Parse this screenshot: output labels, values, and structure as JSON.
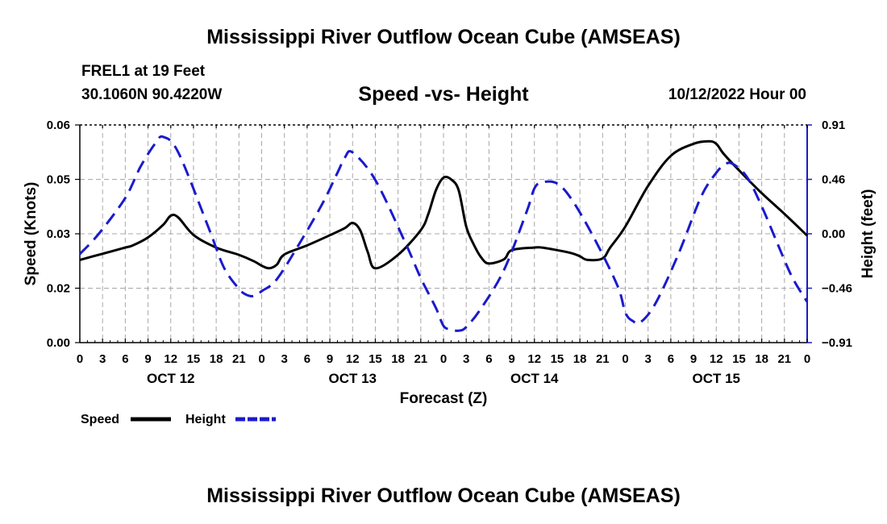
{
  "page": {
    "title": "Mississippi River Outflow Ocean Cube (AMSEAS)",
    "footer_title": "Mississippi River Outflow Ocean Cube (AMSEAS)",
    "station": "FREL1 at 19 Feet",
    "coords": "30.1060N  90.4220W",
    "datetime": "10/12/2022 Hour 00"
  },
  "chart_data": {
    "type": "line",
    "title": "Speed -vs- Height",
    "xlabel": "Forecast (Z)",
    "ylabel_left": "Speed (Knots)",
    "ylabel_right": "Height (feet)",
    "x_range_hours": [
      0,
      96
    ],
    "left_ylim": [
      0,
      0.06
    ],
    "left_ticks": [
      "0.00",
      "0.02",
      "0.03",
      "0.05",
      "0.06"
    ],
    "right_ylim": [
      -0.91,
      0.91
    ],
    "right_ticks": [
      "−0.91",
      "−0.46",
      "0.00",
      "0.46",
      "0.91"
    ],
    "x_tick_labels": [
      "0",
      "3",
      "6",
      "9",
      "12",
      "15",
      "18",
      "21",
      "0",
      "3",
      "6",
      "9",
      "12",
      "15",
      "18",
      "21",
      "0",
      "3",
      "6",
      "9",
      "12",
      "15",
      "18",
      "21",
      "0",
      "3",
      "6",
      "9",
      "12",
      "15",
      "18",
      "21",
      "0"
    ],
    "day_labels": [
      "OCT 12",
      "OCT 13",
      "OCT 14",
      "OCT 15"
    ],
    "day_label_hours": [
      12,
      36,
      60,
      84
    ],
    "grid": true,
    "series": [
      {
        "name": "Speed",
        "axis": "left",
        "color": "#000000",
        "dash": "solid",
        "x": [
          0,
          3,
          6,
          7,
          9,
          11,
          12,
          13,
          15,
          18,
          21,
          23,
          24,
          25,
          26,
          27,
          30,
          33,
          35,
          36,
          37,
          38,
          39,
          42,
          45,
          46,
          47,
          48,
          49,
          50,
          51,
          52,
          53,
          54,
          56,
          57,
          60,
          61,
          63,
          65,
          66,
          67,
          69,
          70,
          72,
          75,
          78,
          81,
          83,
          84,
          85,
          87,
          90,
          93,
          96
        ],
        "y": [
          0.0228,
          0.0245,
          0.0262,
          0.0268,
          0.029,
          0.0325,
          0.035,
          0.0345,
          0.0297,
          0.0262,
          0.0242,
          0.0224,
          0.0212,
          0.0205,
          0.0215,
          0.0243,
          0.0268,
          0.0296,
          0.0316,
          0.033,
          0.031,
          0.025,
          0.0205,
          0.0242,
          0.031,
          0.0355,
          0.042,
          0.0455,
          0.045,
          0.042,
          0.032,
          0.027,
          0.0234,
          0.0218,
          0.023,
          0.0255,
          0.0262,
          0.0262,
          0.0255,
          0.0246,
          0.0238,
          0.0228,
          0.0232,
          0.0262,
          0.032,
          0.0432,
          0.0515,
          0.0548,
          0.0555,
          0.0548,
          0.052,
          0.0475,
          0.0412,
          0.0355,
          0.0295
        ]
      },
      {
        "name": "Height",
        "axis": "right",
        "color": "#1a1acc",
        "dash": "dashed",
        "x": [
          0,
          2.5,
          6,
          8,
          10,
          11,
          13,
          17,
          19,
          21,
          22,
          23,
          24,
          26,
          29,
          32,
          34,
          35,
          36,
          39,
          43,
          45,
          47,
          48,
          49,
          50,
          51,
          53,
          56,
          59,
          60,
          61,
          63,
          65,
          68,
          71,
          72,
          73,
          74,
          76,
          79,
          82,
          84,
          85,
          86,
          88,
          90,
          92,
          94,
          96
        ],
        "y": [
          -0.17,
          0.0,
          0.3,
          0.56,
          0.76,
          0.81,
          0.68,
          0.05,
          -0.28,
          -0.46,
          -0.51,
          -0.52,
          -0.48,
          -0.38,
          -0.08,
          0.25,
          0.51,
          0.64,
          0.68,
          0.45,
          -0.08,
          -0.37,
          -0.62,
          -0.77,
          -0.8,
          -0.81,
          -0.78,
          -0.62,
          -0.3,
          0.19,
          0.38,
          0.43,
          0.42,
          0.28,
          -0.05,
          -0.44,
          -0.66,
          -0.73,
          -0.74,
          -0.58,
          -0.17,
          0.31,
          0.51,
          0.57,
          0.59,
          0.48,
          0.23,
          -0.07,
          -0.36,
          -0.57
        ]
      }
    ],
    "legend": [
      {
        "label": "Speed",
        "color": "#000000",
        "dash": "solid"
      },
      {
        "label": "Height",
        "color": "#1a1acc",
        "dash": "dashed"
      }
    ]
  }
}
